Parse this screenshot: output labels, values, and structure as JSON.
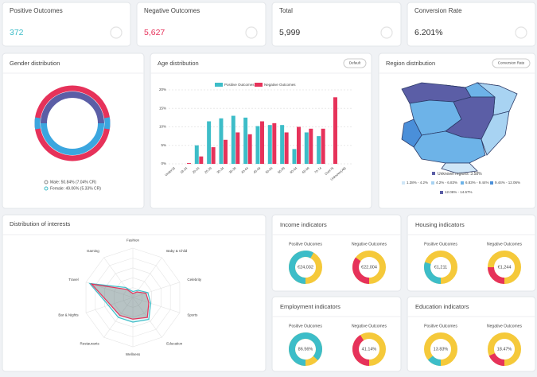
{
  "kpis": [
    {
      "label": "Positive Outcomes",
      "value": "372",
      "color": "#3dbdc8"
    },
    {
      "label": "Negative Outcomes",
      "value": "5,627",
      "color": "#e6325a"
    },
    {
      "label": "Total",
      "value": "5,999",
      "color": "#333333"
    },
    {
      "label": "Conversion Rate",
      "value": "6.201%",
      "color": "#333333"
    }
  ],
  "gender": {
    "title": "Gender distribution",
    "legend": [
      "Male: 50.84% (7.04% CR)",
      "Female: 49.06% (5.33% CR)"
    ]
  },
  "age": {
    "title": "Age distribution",
    "button": "Default",
    "chart": {
      "type": "bar",
      "categories": [
        "Under18",
        "18-24",
        "20-24",
        "25-29",
        "30-34",
        "35-39",
        "40-44",
        "45-49",
        "50-54",
        "55-59",
        "60-64",
        "65-69",
        "70-74",
        "Over75",
        "Unknown(All)"
      ],
      "series": [
        {
          "name": "Positive Outcomes",
          "color": "#3dbdc8",
          "values": [
            0,
            0,
            5,
            11.5,
            12.3,
            13,
            12.5,
            10.2,
            10.5,
            10.5,
            4,
            8.5,
            7.5,
            0,
            0
          ]
        },
        {
          "name": "Negative Outcomes",
          "color": "#e6325a",
          "values": [
            0,
            0.2,
            2,
            4.5,
            6.5,
            8.5,
            8,
            11.5,
            11,
            8.5,
            10,
            9.5,
            9.5,
            18,
            0
          ]
        }
      ],
      "ylim": [
        0,
        20
      ],
      "yticks": [
        {
          "value": 0,
          "label": "0%"
        },
        {
          "value": 5,
          "label": "5%"
        },
        {
          "value": 10,
          "label": "10%"
        },
        {
          "value": 15,
          "label": "15%"
        },
        {
          "value": 20,
          "label": "20%"
        }
      ],
      "grid": true
    }
  },
  "region": {
    "title": "Region distribution",
    "button": "Conversion Rate",
    "unknown": "Unknown regions: 3.58%",
    "legend": [
      {
        "label": "1.38% - 4.2%",
        "color": "#cfe6f7"
      },
      {
        "label": "4.2% - 6.83%",
        "color": "#a8d3f2"
      },
      {
        "label": "6.83% - 9.44%",
        "color": "#6db3e8"
      },
      {
        "label": "9.44% - 12.06%",
        "color": "#4a8fd9"
      },
      {
        "label": "12.06% - 14.67%",
        "color": "#5b5ea6"
      }
    ]
  },
  "interests": {
    "title": "Distribution of interests",
    "type": "radar",
    "rmax": 1,
    "axes": [
      "Fashion",
      "Baby & Child",
      "Celebrity",
      "Sports",
      "Education",
      "Wellness",
      "Restaurants",
      "Bar & Nights",
      "Travel",
      "Gaming"
    ],
    "series": [
      {
        "color": "#3dbdc8",
        "values": [
          0.12,
          0.18,
          0.32,
          0.38,
          0.55,
          0.5,
          0.5,
          0.52,
          0.92,
          0.25
        ]
      },
      {
        "color": "#e6325a",
        "values": [
          0.08,
          0.14,
          0.28,
          0.34,
          0.5,
          0.44,
          0.45,
          0.48,
          0.88,
          0.2
        ]
      }
    ]
  },
  "indicators": [
    {
      "title": "Income indicators",
      "positive": {
        "label": "Positive Outcomes",
        "value": "€24,032",
        "arc": 58
      },
      "negative": {
        "label": "Negative Outcomes",
        "value": "€22,004",
        "arc": 35
      }
    },
    {
      "title": "Housing indicators",
      "positive": {
        "label": "Positive Outcomes",
        "value": "€1,211",
        "arc": 30
      },
      "negative": {
        "label": "Negative Outcomes",
        "value": "€1,244",
        "arc": 25
      }
    },
    {
      "title": "Employment indicators",
      "positive": {
        "label": "Positive Outcomes",
        "value": "86.56%",
        "arc": 86.56
      },
      "negative": {
        "label": "Negative Outcomes",
        "value": "41.14%",
        "arc": 41.14
      }
    },
    {
      "title": "Education indicators",
      "positive": {
        "label": "Positive Outcomes",
        "value": "13.83%",
        "arc": 13.83
      },
      "negative": {
        "label": "Negative Outcomes",
        "value": "18.47%",
        "arc": 18.47
      }
    }
  ]
}
